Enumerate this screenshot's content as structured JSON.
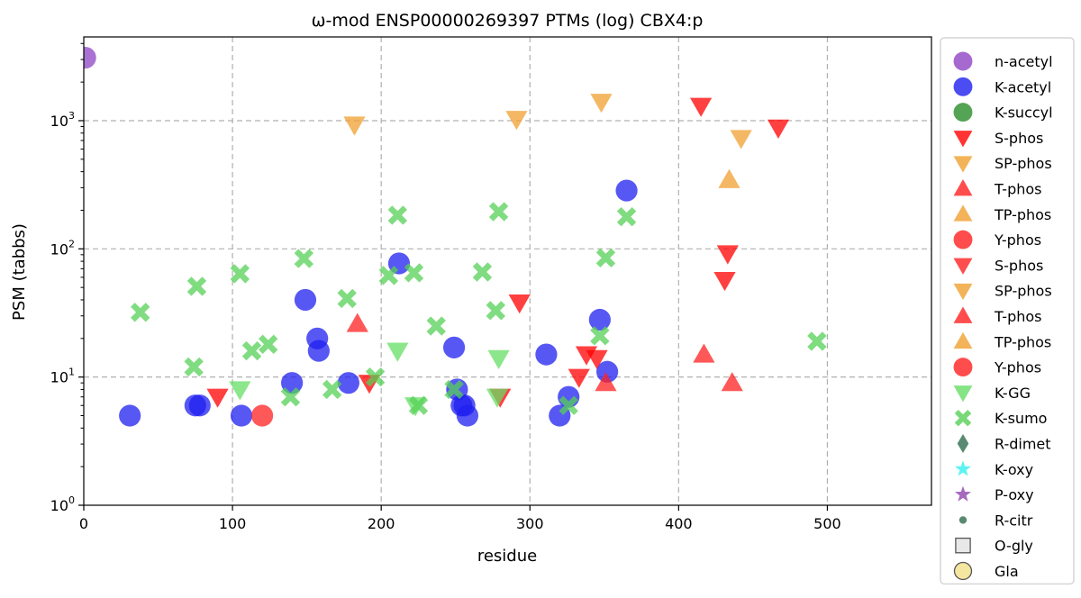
{
  "chart_data": {
    "type": "scatter",
    "title": "ω-mod ENSP00000269397 PTMs (log) CBX4:p",
    "xlabel": "residue",
    "ylabel": "PSM (tabbs)",
    "xlim": [
      0,
      570
    ],
    "ylim": [
      1,
      4500
    ],
    "yscale": "log",
    "grid": true,
    "legend_position": "outside-right",
    "x_ticks": [
      0,
      100,
      200,
      300,
      400,
      500
    ],
    "y_ticks": [
      {
        "value": 1,
        "base": "10",
        "exp": "0"
      },
      {
        "value": 10,
        "base": "10",
        "exp": "1"
      },
      {
        "value": 100,
        "base": "10",
        "exp": "2"
      },
      {
        "value": 1000,
        "base": "10",
        "exp": "3"
      }
    ],
    "series": [
      {
        "name": "n-acetyl",
        "marker": "circle",
        "color": "#8e44c4",
        "points": [
          [
            1,
            3100
          ]
        ]
      },
      {
        "name": "K-acetyl",
        "marker": "circle",
        "color": "#1f1ff0",
        "points": [
          [
            31,
            5
          ],
          [
            75,
            6
          ],
          [
            78,
            6
          ],
          [
            106,
            5
          ],
          [
            140,
            9
          ],
          [
            149,
            40
          ],
          [
            157,
            20
          ],
          [
            158,
            16
          ],
          [
            178,
            9
          ],
          [
            212,
            77
          ],
          [
            249,
            17
          ],
          [
            251,
            8
          ],
          [
            254,
            6
          ],
          [
            256,
            6
          ],
          [
            258,
            5
          ],
          [
            311,
            15
          ],
          [
            320,
            5
          ],
          [
            326,
            7
          ],
          [
            347,
            28
          ],
          [
            352,
            11
          ],
          [
            365,
            285
          ]
        ]
      },
      {
        "name": "K-succyl",
        "marker": "circle",
        "color": "#2a8c2a",
        "points": []
      },
      {
        "name": "S-phos",
        "marker": "triangle-down",
        "color": "#ff0000",
        "points": [
          [
            90,
            7
          ],
          [
            192,
            9
          ],
          [
            280,
            7
          ],
          [
            293,
            38
          ],
          [
            333,
            10
          ],
          [
            338,
            15
          ],
          [
            345,
            14
          ],
          [
            415,
            1300
          ],
          [
            431,
            57
          ],
          [
            433,
            92
          ],
          [
            467,
            880
          ]
        ]
      },
      {
        "name": "SP-phos",
        "marker": "triangle-down",
        "color": "#f0a030",
        "points": [
          [
            182,
            930
          ],
          [
            291,
            1030
          ],
          [
            348,
            1400
          ],
          [
            442,
            730
          ]
        ]
      },
      {
        "name": "T-phos",
        "marker": "triangle-up",
        "color": "#ff2020",
        "points": [
          [
            184,
            26
          ],
          [
            351,
            9
          ],
          [
            417,
            15
          ],
          [
            436,
            9
          ]
        ]
      },
      {
        "name": "TP-phos",
        "marker": "triangle-up",
        "color": "#f0a030",
        "points": [
          [
            434,
            345
          ]
        ]
      },
      {
        "name": "Y-phos",
        "marker": "circle",
        "color": "#ff2020",
        "points": [
          [
            120,
            5
          ]
        ]
      },
      {
        "name": "S-phos",
        "marker": "triangle-down",
        "color": "#ff2020",
        "points": []
      },
      {
        "name": "SP-phos",
        "marker": "triangle-down",
        "color": "#f0a030",
        "points": []
      },
      {
        "name": "T-phos",
        "marker": "triangle-up",
        "color": "#ff2020",
        "points": []
      },
      {
        "name": "TP-phos",
        "marker": "triangle-up",
        "color": "#f0a030",
        "points": []
      },
      {
        "name": "Y-phos",
        "marker": "circle",
        "color": "#ff2020",
        "points": []
      },
      {
        "name": "K-GG",
        "marker": "triangle-down",
        "color": "#66dd66",
        "points": [
          [
            105,
            8
          ],
          [
            211,
            16
          ],
          [
            223,
            6
          ],
          [
            279,
            14
          ],
          [
            278,
            7
          ]
        ]
      },
      {
        "name": "K-sumo",
        "marker": "x",
        "color": "#55d055",
        "points": [
          [
            38,
            32
          ],
          [
            74,
            12
          ],
          [
            76,
            51
          ],
          [
            105,
            64
          ],
          [
            113,
            16
          ],
          [
            124,
            18
          ],
          [
            139,
            7
          ],
          [
            148,
            84
          ],
          [
            167,
            8
          ],
          [
            177,
            41
          ],
          [
            196,
            10
          ],
          [
            205,
            62
          ],
          [
            211,
            183
          ],
          [
            222,
            65
          ],
          [
            225,
            6
          ],
          [
            237,
            25
          ],
          [
            249,
            8
          ],
          [
            268,
            66
          ],
          [
            277,
            33
          ],
          [
            279,
            195
          ],
          [
            326,
            6
          ],
          [
            347,
            21
          ],
          [
            351,
            85
          ],
          [
            365,
            178
          ],
          [
            493,
            19
          ]
        ]
      },
      {
        "name": "R-dimet",
        "marker": "diamond",
        "color": "#2e6b4e",
        "points": []
      },
      {
        "name": "K-oxy",
        "marker": "star",
        "color": "#33f0f0",
        "points": []
      },
      {
        "name": "P-oxy",
        "marker": "star",
        "color": "#8e44ad",
        "points": []
      },
      {
        "name": "R-citr",
        "marker": "small-circle",
        "color": "#2e6b4e",
        "points": []
      },
      {
        "name": "O-gly",
        "marker": "square",
        "color": "#e8e8e8",
        "points": []
      },
      {
        "name": "Gla",
        "marker": "circle-outline",
        "color": "#f5e6a0",
        "points": []
      }
    ]
  }
}
